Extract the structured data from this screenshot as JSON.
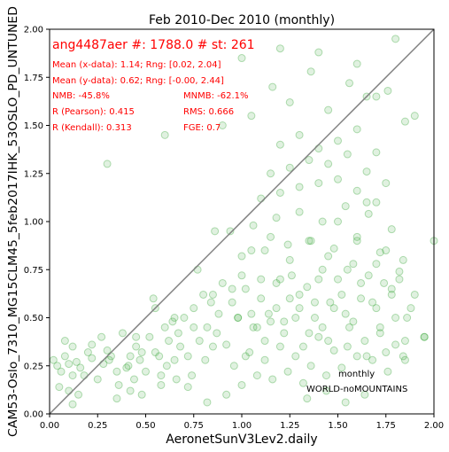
{
  "chart_data": {
    "type": "scatter",
    "title": "Feb 2010-Dec 2010 (monthly)",
    "xlabel": "AeronetSunV3Lev2.daily",
    "ylabel": "CAM53-Oslo_7310_MG15CLM45_5feb2017IHK_53OSLO_PD_UNTUNED",
    "xlim": [
      0.0,
      2.0
    ],
    "ylim": [
      0.0,
      2.0
    ],
    "xticks": [
      "0.00",
      "0.25",
      "0.50",
      "0.75",
      "1.00",
      "1.25",
      "1.50",
      "1.75",
      "2.00"
    ],
    "yticks": [
      "0.00",
      "0.25",
      "0.50",
      "0.75",
      "1.00",
      "1.25",
      "1.50",
      "1.75",
      "2.00"
    ],
    "grid": false,
    "reference_line": "y = x",
    "point_color": "#2ca02c",
    "line_color": "#808080",
    "stats_color": "#ff0000",
    "stats": {
      "header": "ang4487aer #: 1788.0 # st: 261",
      "mean_x": "Mean (x-data): 1.14; Rng: [0.02, 2.04]",
      "mean_y": "Mean (y-data): 0.62; Rng: [-0.00, 2.44]",
      "nmb": "NMB: -45.8%",
      "mnmb": "MNMB: -62.1%",
      "r_pearson": "R (Pearson): 0.415",
      "rms": "RMS: 0.666",
      "r_kendall": "R (Kendall): 0.313",
      "fge": "FGE: 0.7"
    },
    "annotations": {
      "frequency": "monthly",
      "region": "WORLD-noMOUNTAINS"
    },
    "series": [
      {
        "x": [
          0.02,
          0.04,
          0.06,
          0.08,
          0.1,
          0.12,
          0.14,
          0.16,
          0.2,
          0.22,
          0.25,
          0.28,
          0.3,
          0.32,
          0.35,
          0.05,
          0.1,
          0.15,
          0.18,
          0.12,
          0.08,
          0.22,
          0.27,
          0.31,
          0.36,
          0.4,
          0.42,
          0.45,
          0.48,
          0.5,
          0.38,
          0.41,
          0.44,
          0.47,
          0.52,
          0.55,
          0.58,
          0.6,
          0.62,
          0.65,
          0.68,
          0.7,
          0.54,
          0.57,
          0.61,
          0.64,
          0.67,
          0.72,
          0.75,
          0.78,
          0.8,
          0.82,
          0.85,
          0.88,
          0.9,
          0.74,
          0.77,
          0.81,
          0.84,
          0.87,
          0.92,
          0.95,
          0.98,
          1.0,
          1.02,
          1.05,
          1.08,
          1.1,
          1.12,
          1.15,
          1.18,
          1.2,
          1.22,
          1.25,
          1.28,
          1.3,
          1.32,
          1.35,
          1.38,
          1.4,
          1.42,
          1.45,
          1.48,
          1.5,
          1.52,
          1.55,
          1.58,
          1.6,
          1.62,
          1.65,
          1.68,
          1.7,
          1.72,
          1.75,
          1.78,
          1.8,
          1.82,
          1.85,
          1.88,
          1.9,
          1.95,
          2.0,
          0.96,
          1.0,
          1.04,
          1.08,
          1.12,
          1.16,
          1.2,
          1.24,
          1.28,
          1.32,
          1.36,
          1.4,
          1.44,
          1.48,
          1.52,
          1.56,
          1.6,
          1.64,
          1.68,
          1.72,
          1.76,
          1.8,
          1.84,
          0.98,
          1.06,
          1.14,
          1.22,
          1.3,
          1.38,
          1.46,
          1.54,
          1.62,
          1.7,
          1.78,
          1.86,
          1.02,
          1.1,
          1.18,
          1.26,
          1.34,
          1.42,
          1.5,
          1.58,
          1.66,
          1.74,
          1.82,
          1.0,
          1.12,
          1.24,
          1.36,
          1.48,
          1.6,
          1.72,
          1.84,
          0.94,
          1.06,
          1.18,
          1.3,
          1.42,
          1.54,
          1.66,
          1.78,
          1.1,
          1.2,
          1.3,
          1.4,
          1.5,
          1.6,
          1.7,
          1.15,
          1.25,
          1.35,
          1.45,
          1.55,
          1.65,
          1.75,
          1.2,
          1.3,
          1.4,
          1.5,
          1.6,
          1.7,
          0.9,
          1.05,
          1.25,
          1.45,
          1.65,
          1.85,
          0.86,
          1.16,
          1.36,
          1.56,
          1.76,
          1.0,
          1.2,
          1.4,
          1.6,
          1.8,
          0.3,
          0.6,
          1.7,
          1.9,
          0.45,
          0.55,
          0.65,
          0.75,
          0.85,
          0.95,
          1.05,
          1.15,
          1.25,
          1.35,
          1.45,
          1.55,
          1.65,
          1.75,
          1.85,
          1.95,
          0.12,
          0.35,
          0.42,
          0.48,
          0.58,
          0.66,
          0.72,
          0.82,
          0.92,
          1.34,
          1.44,
          1.54,
          1.64
        ],
        "y": [
          0.28,
          0.25,
          0.22,
          0.3,
          0.26,
          0.2,
          0.27,
          0.24,
          0.32,
          0.29,
          0.18,
          0.26,
          0.33,
          0.3,
          0.22,
          0.14,
          0.12,
          0.1,
          0.2,
          0.35,
          0.38,
          0.36,
          0.4,
          0.28,
          0.15,
          0.24,
          0.3,
          0.35,
          0.32,
          0.22,
          0.42,
          0.25,
          0.18,
          0.28,
          0.4,
          0.32,
          0.2,
          0.45,
          0.38,
          0.28,
          0.35,
          0.5,
          0.6,
          0.3,
          0.25,
          0.48,
          0.42,
          0.3,
          0.55,
          0.38,
          0.62,
          0.45,
          0.35,
          0.52,
          0.68,
          0.2,
          0.75,
          0.28,
          0.58,
          0.42,
          0.36,
          0.65,
          0.5,
          0.72,
          0.3,
          0.85,
          0.45,
          0.6,
          0.38,
          0.92,
          0.55,
          0.7,
          0.42,
          0.8,
          0.5,
          0.62,
          0.35,
          0.9,
          0.58,
          0.7,
          0.45,
          0.82,
          0.55,
          1.0,
          0.62,
          0.75,
          0.48,
          0.9,
          0.68,
          1.1,
          0.58,
          0.78,
          0.45,
          0.85,
          0.65,
          0.5,
          0.7,
          0.38,
          0.55,
          0.62,
          0.4,
          0.9,
          0.25,
          0.15,
          0.32,
          0.2,
          0.28,
          0.18,
          0.35,
          0.22,
          0.3,
          0.16,
          0.25,
          0.4,
          0.2,
          0.33,
          0.24,
          0.45,
          0.3,
          0.38,
          0.28,
          0.42,
          0.22,
          0.36,
          0.3,
          0.5,
          0.45,
          0.52,
          0.48,
          0.55,
          0.5,
          0.58,
          0.52,
          0.6,
          0.55,
          0.62,
          0.5,
          0.65,
          0.7,
          0.68,
          0.72,
          0.66,
          0.75,
          0.7,
          0.78,
          0.72,
          0.68,
          0.74,
          0.82,
          0.85,
          0.88,
          0.9,
          0.86,
          0.92,
          0.84,
          0.8,
          0.95,
          0.98,
          1.02,
          1.05,
          1.0,
          1.08,
          1.04,
          0.96,
          1.12,
          1.15,
          1.18,
          1.2,
          1.22,
          1.16,
          1.1,
          1.25,
          1.28,
          1.32,
          1.3,
          1.35,
          1.26,
          1.2,
          1.4,
          1.45,
          1.38,
          1.42,
          1.48,
          1.36,
          1.5,
          1.55,
          1.62,
          1.58,
          1.65,
          1.52,
          0.95,
          1.7,
          1.78,
          1.72,
          1.68,
          1.85,
          1.9,
          1.88,
          1.82,
          1.95,
          1.3,
          1.45,
          1.65,
          1.55,
          0.4,
          0.55,
          0.5,
          0.45,
          0.62,
          0.58,
          0.52,
          0.48,
          0.6,
          0.42,
          0.38,
          0.35,
          0.3,
          0.32,
          0.28,
          0.4,
          0.05,
          0.08,
          0.12,
          0.1,
          0.15,
          0.18,
          0.14,
          0.06,
          0.1,
          0.08,
          0.12,
          0.06,
          0.1
        ]
      }
    ]
  }
}
